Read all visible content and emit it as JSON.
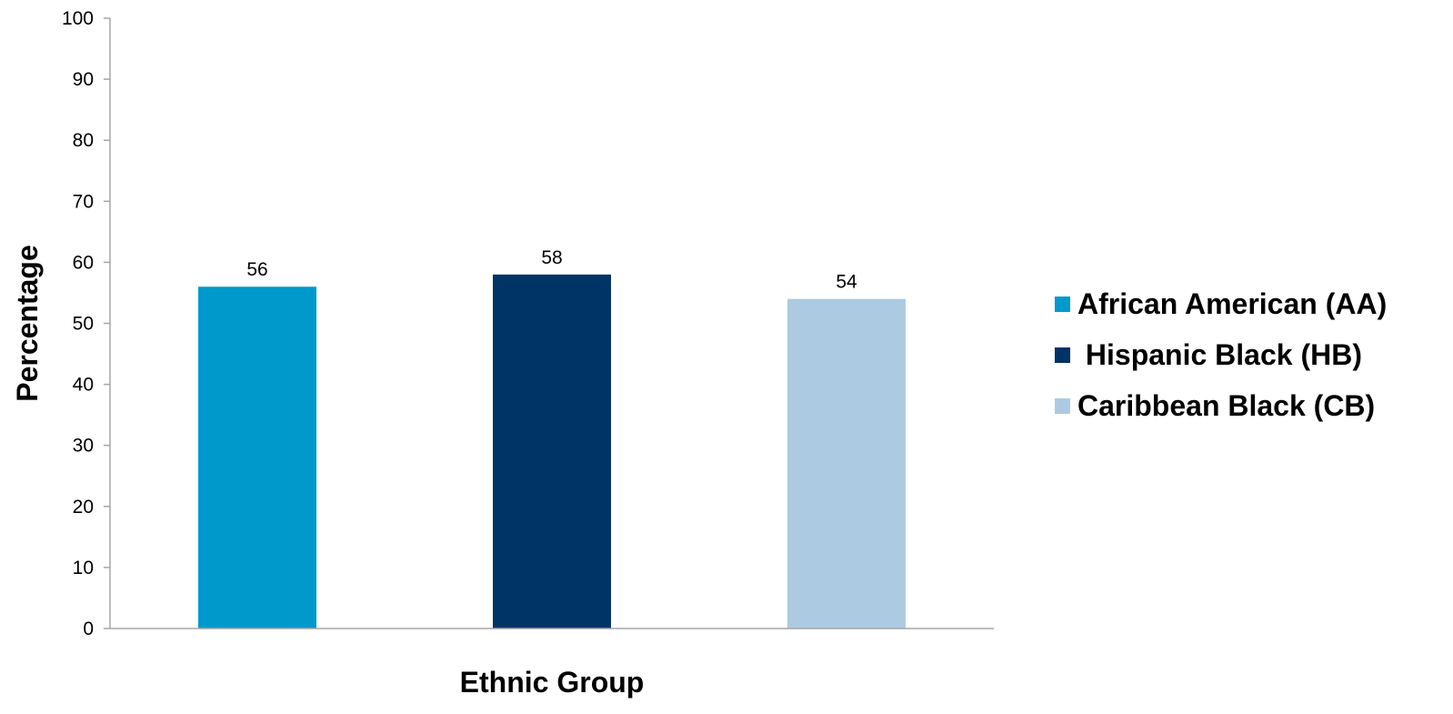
{
  "chart_data": {
    "type": "bar",
    "categories": [
      "African American (AA)",
      "Hispanic Black (HB)",
      "Caribbean Black (CB)"
    ],
    "values": [
      56,
      58,
      54
    ],
    "data_labels": [
      "56",
      "58",
      "54"
    ],
    "colors": [
      "#0099CC",
      "#003366",
      "#ACCBE2"
    ],
    "xlabel": "Ethnic Group",
    "ylabel": "Percentage",
    "ylim": [
      0,
      100
    ],
    "yticks": [
      0,
      10,
      20,
      30,
      40,
      50,
      60,
      70,
      80,
      90,
      100
    ],
    "ytick_labels": [
      "0",
      "10",
      "20",
      "30",
      "40",
      "50",
      "60",
      "70",
      "80",
      "90",
      "100"
    ],
    "grid": false,
    "legend_position": "right",
    "legend": [
      {
        "label": "African American (AA)",
        "color": "#0099CC"
      },
      {
        "label": " Hispanic Black (HB)",
        "color": "#003366"
      },
      {
        "label": "Caribbean Black (CB)",
        "color": "#ACCBE2"
      }
    ]
  }
}
